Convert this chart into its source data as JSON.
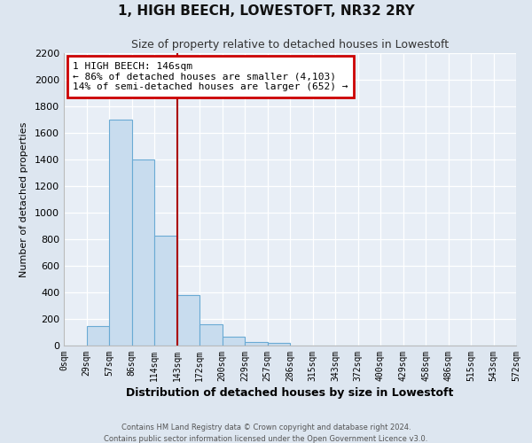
{
  "title": "1, HIGH BEECH, LOWESTOFT, NR32 2RY",
  "subtitle": "Size of property relative to detached houses in Lowestoft",
  "xlabel": "Distribution of detached houses by size in Lowestoft",
  "ylabel": "Number of detached properties",
  "bar_values": [
    0,
    150,
    1700,
    1400,
    830,
    380,
    160,
    65,
    30,
    20,
    0,
    0,
    0,
    0,
    0,
    0,
    0,
    0,
    0,
    0
  ],
  "bar_labels": [
    "0sqm",
    "29sqm",
    "57sqm",
    "86sqm",
    "114sqm",
    "143sqm",
    "172sqm",
    "200sqm",
    "229sqm",
    "257sqm",
    "286sqm",
    "315sqm",
    "343sqm",
    "372sqm",
    "400sqm",
    "429sqm",
    "458sqm",
    "486sqm",
    "515sqm",
    "543sqm",
    "572sqm"
  ],
  "bar_color": "#c8dcee",
  "bar_edge_color": "#6aaad4",
  "vline_color": "#aa0000",
  "annotation_title": "1 HIGH BEECH: 146sqm",
  "annotation_line1": "← 86% of detached houses are smaller (4,103)",
  "annotation_line2": "14% of semi-detached houses are larger (652) →",
  "annotation_box_edgecolor": "#cc0000",
  "ylim": [
    0,
    2200
  ],
  "yticks": [
    0,
    200,
    400,
    600,
    800,
    1000,
    1200,
    1400,
    1600,
    1800,
    2000,
    2200
  ],
  "footer1": "Contains HM Land Registry data © Crown copyright and database right 2024.",
  "footer2": "Contains public sector information licensed under the Open Government Licence v3.0.",
  "bg_color": "#dde6f0",
  "plot_bg_color": "#e8eef6"
}
